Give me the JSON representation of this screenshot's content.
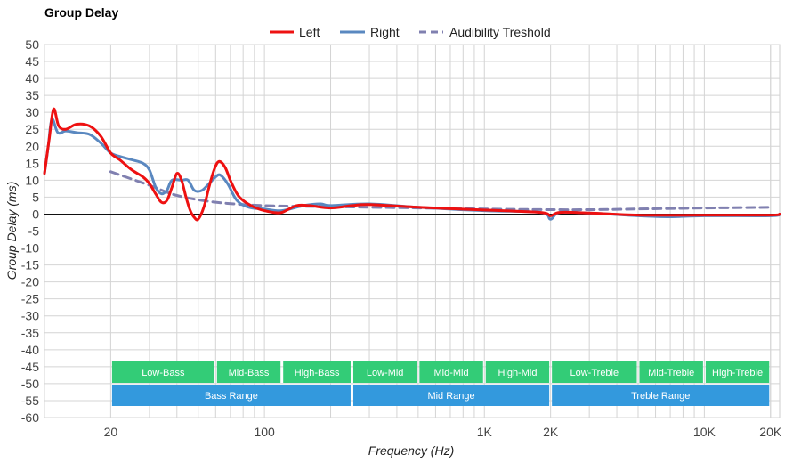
{
  "chart_data": {
    "type": "line",
    "title": "Group Delay",
    "xlabel": "Frequency (Hz)",
    "ylabel": "Group Delay (ms)",
    "xscale": "log",
    "xlim": [
      10,
      22000
    ],
    "ylim": [
      -60,
      50
    ],
    "y_ticks": [
      50,
      45,
      40,
      35,
      30,
      25,
      20,
      15,
      10,
      5,
      0,
      -5,
      -10,
      -15,
      -20,
      -25,
      -30,
      -35,
      -40,
      -45,
      -50,
      -55,
      -60
    ],
    "x_tick_labels": [
      {
        "value": 20,
        "label": "20"
      },
      {
        "value": 100,
        "label": "100"
      },
      {
        "value": 1000,
        "label": "1K"
      },
      {
        "value": 2000,
        "label": "2K"
      },
      {
        "value": 10000,
        "label": "10K"
      },
      {
        "value": 20000,
        "label": "20K"
      }
    ],
    "legend": [
      "Left",
      "Right",
      "Audibility Treshold"
    ],
    "legend_position": "top-center",
    "series": [
      {
        "name": "Left",
        "color": "#ee1111",
        "dash": "solid",
        "points": [
          [
            10,
            12
          ],
          [
            10.5,
            22
          ],
          [
            11,
            31
          ],
          [
            11.6,
            26
          ],
          [
            12.5,
            25
          ],
          [
            14,
            26.5
          ],
          [
            16,
            26
          ],
          [
            18,
            23
          ],
          [
            20,
            18
          ],
          [
            22,
            16
          ],
          [
            25,
            13
          ],
          [
            28,
            11
          ],
          [
            30,
            9
          ],
          [
            32,
            6
          ],
          [
            34,
            3.5
          ],
          [
            36,
            4
          ],
          [
            38,
            8
          ],
          [
            40,
            12
          ],
          [
            42,
            10
          ],
          [
            44,
            5
          ],
          [
            46,
            1
          ],
          [
            48,
            -1
          ],
          [
            50,
            -1.5
          ],
          [
            53,
            2
          ],
          [
            56,
            8
          ],
          [
            59,
            13
          ],
          [
            62,
            15.5
          ],
          [
            66,
            14
          ],
          [
            70,
            10
          ],
          [
            75,
            6
          ],
          [
            80,
            4
          ],
          [
            90,
            2
          ],
          [
            100,
            1
          ],
          [
            110,
            0.5
          ],
          [
            120,
            0.5
          ],
          [
            140,
            2.5
          ],
          [
            160,
            2.5
          ],
          [
            200,
            1.8
          ],
          [
            250,
            2.5
          ],
          [
            300,
            2.8
          ],
          [
            500,
            2
          ],
          [
            1000,
            1.2
          ],
          [
            1800,
            0.5
          ],
          [
            2000,
            -0.5
          ],
          [
            2200,
            0.5
          ],
          [
            3000,
            0.3
          ],
          [
            5000,
            -0.3
          ],
          [
            10000,
            -0.3
          ],
          [
            20000,
            -0.3
          ],
          [
            22000,
            0
          ]
        ]
      },
      {
        "name": "Right",
        "color": "#5a88c0",
        "dash": "solid",
        "points": [
          [
            10,
            12
          ],
          [
            10.4,
            20
          ],
          [
            10.8,
            28
          ],
          [
            11.5,
            24
          ],
          [
            12.5,
            24.5
          ],
          [
            14,
            24
          ],
          [
            16,
            23.5
          ],
          [
            18,
            21
          ],
          [
            20,
            18
          ],
          [
            22,
            17
          ],
          [
            25,
            16
          ],
          [
            28,
            15
          ],
          [
            30,
            13
          ],
          [
            32,
            8
          ],
          [
            34,
            6
          ],
          [
            36,
            7
          ],
          [
            38,
            10
          ],
          [
            42,
            10
          ],
          [
            45,
            10
          ],
          [
            48,
            7
          ],
          [
            52,
            7
          ],
          [
            56,
            9
          ],
          [
            60,
            11
          ],
          [
            63,
            11.5
          ],
          [
            68,
            9
          ],
          [
            75,
            4
          ],
          [
            85,
            2
          ],
          [
            100,
            1.5
          ],
          [
            120,
            1
          ],
          [
            150,
            2.5
          ],
          [
            180,
            3
          ],
          [
            200,
            2.5
          ],
          [
            300,
            3
          ],
          [
            500,
            2
          ],
          [
            1000,
            1
          ],
          [
            1800,
            0.5
          ],
          [
            2000,
            -1.5
          ],
          [
            2200,
            0.5
          ],
          [
            3000,
            0.3
          ],
          [
            5000,
            -0.5
          ],
          [
            7000,
            -0.8
          ],
          [
            10000,
            -0.5
          ],
          [
            20000,
            -0.5
          ],
          [
            22000,
            0
          ]
        ]
      },
      {
        "name": "Audibility Treshold",
        "color": "#8080b0",
        "dash": "dashed",
        "points": [
          [
            20,
            12.5
          ],
          [
            30,
            8.5
          ],
          [
            40,
            5.5
          ],
          [
            60,
            3.5
          ],
          [
            100,
            2.5
          ],
          [
            200,
            2.2
          ],
          [
            500,
            1.8
          ],
          [
            1000,
            1.5
          ],
          [
            2000,
            1.3
          ],
          [
            3000,
            1.3
          ],
          [
            5000,
            1.5
          ],
          [
            10000,
            1.8
          ],
          [
            20000,
            2
          ]
        ]
      }
    ],
    "range_bands": {
      "upper": [
        {
          "label": "Low-Bass",
          "from": 20,
          "to": 60
        },
        {
          "label": "Mid-Bass",
          "from": 60,
          "to": 120
        },
        {
          "label": "High-Bass",
          "from": 120,
          "to": 250
        },
        {
          "label": "Low-Mid",
          "from": 250,
          "to": 500
        },
        {
          "label": "Mid-Mid",
          "from": 500,
          "to": 1000
        },
        {
          "label": "High-Mid",
          "from": 1000,
          "to": 2000
        },
        {
          "label": "Low-Treble",
          "from": 2000,
          "to": 5000
        },
        {
          "label": "Mid-Treble",
          "from": 5000,
          "to": 10000
        },
        {
          "label": "High-Treble",
          "from": 10000,
          "to": 20000
        }
      ],
      "lower": [
        {
          "label": "Bass Range",
          "from": 20,
          "to": 250
        },
        {
          "label": "Mid Range",
          "from": 250,
          "to": 2000
        },
        {
          "label": "Treble Range",
          "from": 2000,
          "to": 20000
        }
      ],
      "upper_color": "#33cc77",
      "lower_color": "#3399dd"
    }
  }
}
